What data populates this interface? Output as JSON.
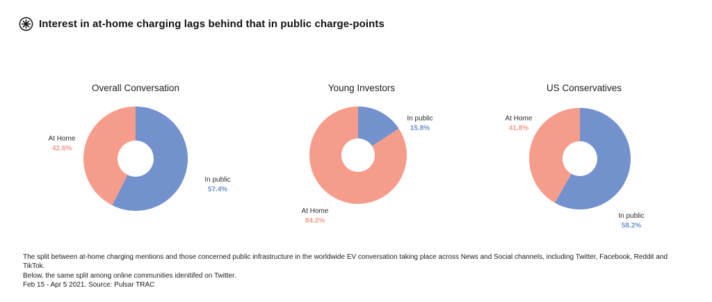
{
  "header": {
    "title": "Interest in at-home charging lags behind that in public charge-points",
    "logo": "asterisk-in-circle"
  },
  "colors": {
    "at_home": "#F59C8B",
    "in_public": "#7291CD"
  },
  "chart_data": [
    {
      "type": "pie",
      "donut": true,
      "title": "Overall Conversation",
      "start_angle_deg": 0,
      "direction": "clockwise",
      "slices": [
        {
          "label": "In public",
          "value": 57.4,
          "pct": "57.4%",
          "color": "#7291CD"
        },
        {
          "label": "At Home",
          "value": 42.6,
          "pct": "42.6%",
          "color": "#F59C8B"
        }
      ]
    },
    {
      "type": "pie",
      "donut": true,
      "title": "Young Investors",
      "start_angle_deg": 0,
      "direction": "clockwise",
      "slices": [
        {
          "label": "In public",
          "value": 15.8,
          "pct": "15.8%",
          "color": "#7291CD"
        },
        {
          "label": "At Home",
          "value": 84.2,
          "pct": "84.2%",
          "color": "#F59C8B"
        }
      ]
    },
    {
      "type": "pie",
      "donut": true,
      "title": "US Conservatives",
      "start_angle_deg": 0,
      "direction": "clockwise",
      "slices": [
        {
          "label": "In public",
          "value": 58.2,
          "pct": "58.2%",
          "color": "#7291CD"
        },
        {
          "label": "At Home",
          "value": 41.8,
          "pct": "41.8%",
          "color": "#F59C8B"
        }
      ]
    }
  ],
  "footer": {
    "line1": "The split between at-home charging mentions and those concerned public infrastructure in the worldwide EV conversation taking place across News and Social channels, including Twitter, Facebook, Reddit and TikTok.",
    "line2": "Below, the same split among online communities idenitifed on Twitter.",
    "line3": "Feb 15 - Apr 5 2021. Source: Pulsar TRAC"
  }
}
